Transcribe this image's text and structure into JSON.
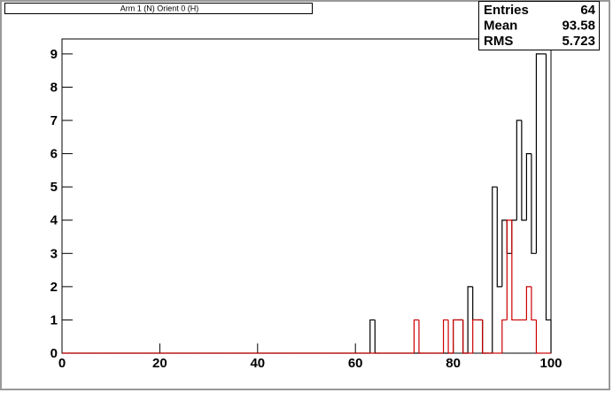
{
  "chart_data": {
    "type": "histogram",
    "title": "Arm 1 (N) Orient 0 (H)",
    "bins": [
      0,
      1,
      2,
      3,
      4,
      5,
      6,
      7,
      8,
      9,
      10,
      11,
      12,
      13,
      14,
      15,
      16,
      17,
      18,
      19,
      20,
      21,
      22,
      23,
      24,
      25,
      26,
      27,
      28,
      29,
      30,
      31,
      32,
      33,
      34,
      35,
      36,
      37,
      38,
      39,
      40,
      41,
      42,
      43,
      44,
      45,
      46,
      47,
      48,
      49,
      50,
      51,
      52,
      53,
      54,
      55,
      56,
      57,
      58,
      59,
      60,
      61,
      62,
      63,
      64,
      65,
      66,
      67,
      68,
      69,
      70,
      71,
      72,
      73,
      74,
      75,
      76,
      77,
      78,
      79,
      80,
      81,
      82,
      83,
      84,
      85,
      86,
      87,
      88,
      89,
      90,
      91,
      92,
      93,
      94,
      95,
      96,
      97,
      98,
      99,
      100
    ],
    "series": [
      {
        "color": "#000000",
        "values": [
          0,
          0,
          0,
          0,
          0,
          0,
          0,
          0,
          0,
          0,
          0,
          0,
          0,
          0,
          0,
          0,
          0,
          0,
          0,
          0,
          0,
          0,
          0,
          0,
          0,
          0,
          0,
          0,
          0,
          0,
          0,
          0,
          0,
          0,
          0,
          0,
          0,
          0,
          0,
          0,
          0,
          0,
          0,
          0,
          0,
          0,
          0,
          0,
          0,
          0,
          0,
          0,
          0,
          0,
          0,
          0,
          0,
          0,
          0,
          0,
          0,
          0,
          0,
          1,
          0,
          0,
          0,
          0,
          0,
          0,
          0,
          0,
          0,
          0,
          0,
          0,
          0,
          0,
          0,
          0,
          1,
          1,
          0,
          2,
          1,
          1,
          0,
          0,
          5,
          2,
          4,
          3,
          4,
          7,
          4,
          6,
          3,
          9,
          9,
          1
        ]
      },
      {
        "color": "#cc0000",
        "values": [
          0,
          0,
          0,
          0,
          0,
          0,
          0,
          0,
          0,
          0,
          0,
          0,
          0,
          0,
          0,
          0,
          0,
          0,
          0,
          0,
          0,
          0,
          0,
          0,
          0,
          0,
          0,
          0,
          0,
          0,
          0,
          0,
          0,
          0,
          0,
          0,
          0,
          0,
          0,
          0,
          0,
          0,
          0,
          0,
          0,
          0,
          0,
          0,
          0,
          0,
          0,
          0,
          0,
          0,
          0,
          0,
          0,
          0,
          0,
          0,
          0,
          0,
          0,
          0,
          0,
          0,
          0,
          0,
          0,
          0,
          0,
          0,
          1,
          0,
          0,
          0,
          0,
          0,
          1,
          0,
          1,
          1,
          0,
          0,
          1,
          1,
          0,
          0,
          0,
          0,
          1,
          4,
          1,
          1,
          1,
          2,
          1,
          0,
          0,
          0
        ]
      }
    ],
    "xlim": [
      0,
      100
    ],
    "ylim": [
      0,
      9.45
    ],
    "xticks": [
      0,
      20,
      40,
      60,
      80,
      100
    ],
    "yticks": [
      0,
      1,
      2,
      3,
      4,
      5,
      6,
      7,
      8,
      9
    ],
    "stats": [
      {
        "label": "Entries",
        "value": 64
      },
      {
        "label": "Mean",
        "value": 93.58
      },
      {
        "label": "RMS",
        "value": 5.723
      }
    ]
  }
}
